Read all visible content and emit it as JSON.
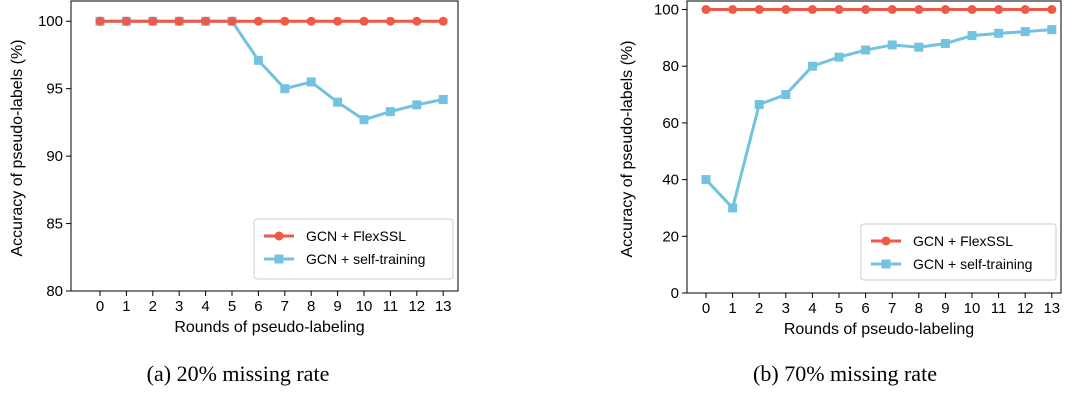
{
  "colors": {
    "flexssl": "#ee5a45",
    "self_training": "#72c2e0"
  },
  "chart_data": [
    {
      "type": "line",
      "caption": "(a) 20% missing rate",
      "xlabel": "Rounds of pseudo-labeling",
      "ylabel": "Accuracy of pseudo-labels (%)",
      "x": [
        0,
        1,
        2,
        3,
        4,
        5,
        6,
        7,
        8,
        9,
        10,
        11,
        12,
        13
      ],
      "ylim": [
        80,
        101.5
      ],
      "yticks": [
        80,
        85,
        90,
        95,
        100
      ],
      "legend_position": "lower-right",
      "grid": false,
      "series": [
        {
          "name": "GCN + FlexSSL",
          "marker": "circle",
          "values": [
            100,
            100,
            100,
            100,
            100,
            100,
            100,
            100,
            100,
            100,
            100,
            100,
            100,
            100
          ]
        },
        {
          "name": "GCN + self-training",
          "marker": "square",
          "values": [
            100,
            100,
            100,
            100,
            100,
            100,
            97.1,
            95.0,
            95.5,
            94.0,
            92.7,
            93.3,
            93.8,
            94.2
          ]
        }
      ]
    },
    {
      "type": "line",
      "caption": "(b) 70% missing rate",
      "xlabel": "Rounds of pseudo-labeling",
      "ylabel": "Accuracy of pseudo-labels (%)",
      "x": [
        0,
        1,
        2,
        3,
        4,
        5,
        6,
        7,
        8,
        9,
        10,
        11,
        12,
        13
      ],
      "ylim": [
        0,
        103
      ],
      "yticks": [
        0,
        20,
        40,
        60,
        80,
        100
      ],
      "legend_position": "lower-right",
      "grid": false,
      "series": [
        {
          "name": "GCN + FlexSSL",
          "marker": "circle",
          "values": [
            100,
            100,
            100,
            100,
            100,
            100,
            100,
            100,
            100,
            100,
            100,
            100,
            100,
            100
          ]
        },
        {
          "name": "GCN + self-training",
          "marker": "square",
          "values": [
            40,
            30,
            66.5,
            70,
            80,
            83.2,
            85.7,
            87.5,
            86.7,
            88.0,
            90.8,
            91.6,
            92.2,
            92.9
          ]
        }
      ]
    }
  ]
}
